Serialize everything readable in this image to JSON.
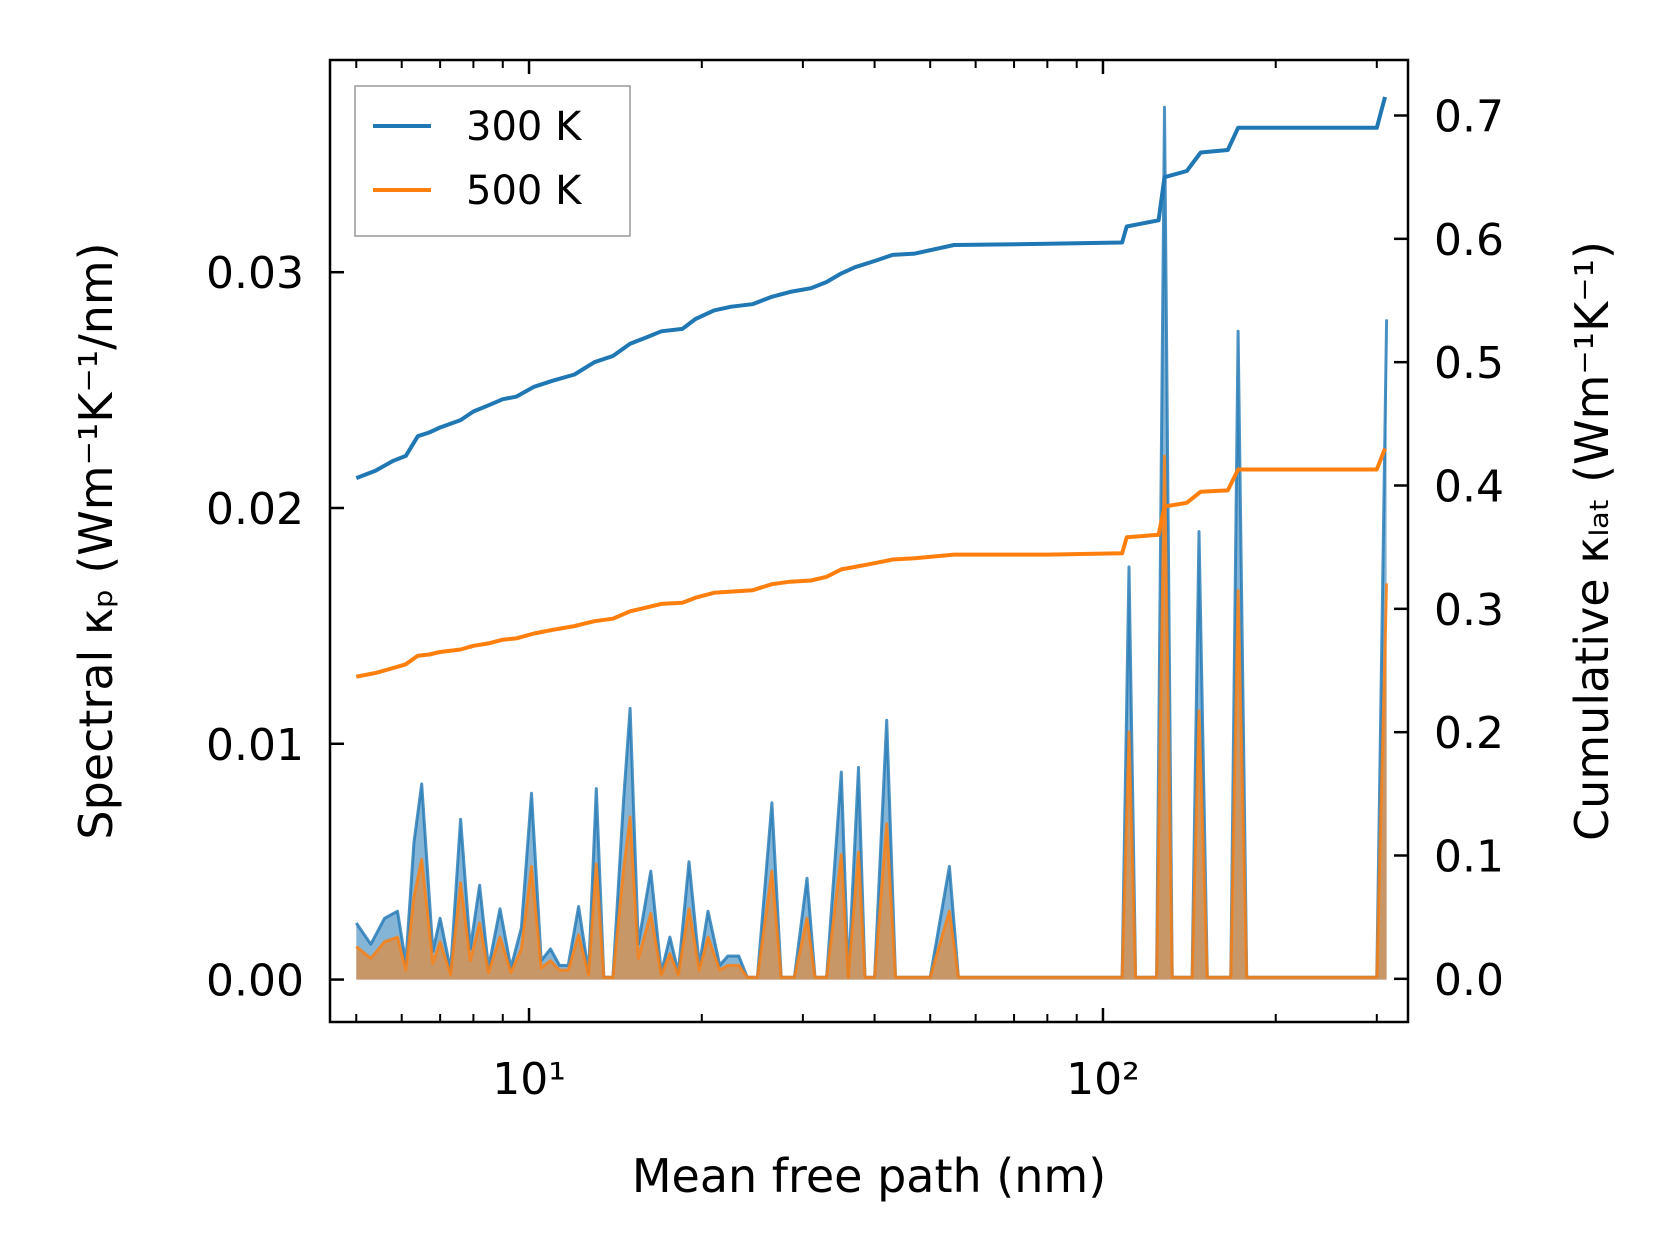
{
  "chart_data": {
    "type": "line",
    "xlabel": "Mean free path (nm)",
    "ylabel_left": "Spectral κₚ (Wm⁻¹K⁻¹/nm)",
    "ylabel_right": "Cumulative κₗₐₜ (Wm⁻¹K⁻¹)",
    "x_scale": "log",
    "xlim": [
      4.5,
      340
    ],
    "ylim_left": [
      -0.0018,
      0.039
    ],
    "ylim_right": [
      -0.035,
      0.745
    ],
    "x_ticks": [
      {
        "value": 10,
        "label": "10¹"
      },
      {
        "value": 100,
        "label": "10²"
      }
    ],
    "y_ticks_left": [
      {
        "value": 0.0,
        "label": "0.00"
      },
      {
        "value": 0.01,
        "label": "0.01"
      },
      {
        "value": 0.02,
        "label": "0.02"
      },
      {
        "value": 0.03,
        "label": "0.03"
      }
    ],
    "y_ticks_right": [
      {
        "value": 0.0,
        "label": "0.0"
      },
      {
        "value": 0.1,
        "label": "0.1"
      },
      {
        "value": 0.2,
        "label": "0.2"
      },
      {
        "value": 0.3,
        "label": "0.3"
      },
      {
        "value": 0.4,
        "label": "0.4"
      },
      {
        "value": 0.5,
        "label": "0.5"
      },
      {
        "value": 0.6,
        "label": "0.6"
      },
      {
        "value": 0.7,
        "label": "0.7"
      }
    ],
    "grid": false,
    "legend_position": "top-left",
    "series": [
      {
        "name": "300 K",
        "color": "#1f77b4",
        "fill_opacity": 0.55,
        "cumulative": [
          [
            5.0,
            0.406
          ],
          [
            5.4,
            0.412
          ],
          [
            5.8,
            0.42
          ],
          [
            6.1,
            0.424
          ],
          [
            6.4,
            0.44
          ],
          [
            6.7,
            0.443
          ],
          [
            7.0,
            0.447
          ],
          [
            7.6,
            0.453
          ],
          [
            8.0,
            0.46
          ],
          [
            8.5,
            0.465
          ],
          [
            9.0,
            0.47
          ],
          [
            9.5,
            0.472
          ],
          [
            10.2,
            0.48
          ],
          [
            11.0,
            0.485
          ],
          [
            12.0,
            0.49
          ],
          [
            13.0,
            0.5
          ],
          [
            14.0,
            0.505
          ],
          [
            15.0,
            0.515
          ],
          [
            16.0,
            0.52
          ],
          [
            17.0,
            0.525
          ],
          [
            18.5,
            0.527
          ],
          [
            19.5,
            0.535
          ],
          [
            21.0,
            0.542
          ],
          [
            22.5,
            0.545
          ],
          [
            24.5,
            0.547
          ],
          [
            26.5,
            0.553
          ],
          [
            28.5,
            0.557
          ],
          [
            31.0,
            0.56
          ],
          [
            33.0,
            0.565
          ],
          [
            35.0,
            0.572
          ],
          [
            37.0,
            0.577
          ],
          [
            40.0,
            0.582
          ],
          [
            43.0,
            0.587
          ],
          [
            47.0,
            0.588
          ],
          [
            55.0,
            0.595
          ],
          [
            80.0,
            0.596
          ],
          [
            108.0,
            0.597
          ],
          [
            110.0,
            0.61
          ],
          [
            125.0,
            0.615
          ],
          [
            128.0,
            0.65
          ],
          [
            140.0,
            0.655
          ],
          [
            148.0,
            0.67
          ],
          [
            165.0,
            0.672
          ],
          [
            172.0,
            0.69
          ],
          [
            200.0,
            0.69
          ],
          [
            300.0,
            0.69
          ],
          [
            310.0,
            0.715
          ]
        ],
        "spectral": [
          [
            5.0,
            0.0024
          ],
          [
            5.3,
            0.0015
          ],
          [
            5.6,
            0.0026
          ],
          [
            5.9,
            0.0029
          ],
          [
            6.1,
            0.0007
          ],
          [
            6.3,
            0.0058
          ],
          [
            6.5,
            0.0083
          ],
          [
            6.8,
            0.0012
          ],
          [
            7.0,
            0.0026
          ],
          [
            7.3,
            0.0004
          ],
          [
            7.6,
            0.0068
          ],
          [
            7.9,
            0.0013
          ],
          [
            8.2,
            0.004
          ],
          [
            8.5,
            0.0005
          ],
          [
            8.9,
            0.003
          ],
          [
            9.3,
            0.0005
          ],
          [
            9.7,
            0.0022
          ],
          [
            10.1,
            0.0079
          ],
          [
            10.5,
            0.0008
          ],
          [
            10.9,
            0.0013
          ],
          [
            11.3,
            0.0006
          ],
          [
            11.7,
            0.0006
          ],
          [
            12.2,
            0.0031
          ],
          [
            12.7,
            0.0003
          ],
          [
            13.1,
            0.0081
          ],
          [
            13.5,
            0.0001
          ],
          [
            14.0,
            0.0001
          ],
          [
            14.6,
            0.0075
          ],
          [
            15.0,
            0.0115
          ],
          [
            15.5,
            0.0015
          ],
          [
            16.3,
            0.0046
          ],
          [
            17.0,
            0.0003
          ],
          [
            17.6,
            0.0018
          ],
          [
            18.2,
            0.0003
          ],
          [
            19.0,
            0.005
          ],
          [
            19.8,
            0.0006
          ],
          [
            20.5,
            0.0029
          ],
          [
            21.5,
            0.0006
          ],
          [
            22.2,
            0.001
          ],
          [
            23.2,
            0.001
          ],
          [
            24.0,
            0.0001
          ],
          [
            25.0,
            0.0001
          ],
          [
            26.5,
            0.0075
          ],
          [
            27.5,
            0.0001
          ],
          [
            29.0,
            0.0001
          ],
          [
            30.5,
            0.0043
          ],
          [
            31.5,
            0.0001
          ],
          [
            33.0,
            0.0001
          ],
          [
            35.0,
            0.0088
          ],
          [
            36.0,
            0.0001
          ],
          [
            37.5,
            0.009
          ],
          [
            38.5,
            0.0001
          ],
          [
            40.0,
            0.0001
          ],
          [
            42.0,
            0.011
          ],
          [
            43.5,
            0.0001
          ],
          [
            50.0,
            0.0001
          ],
          [
            54.0,
            0.0048
          ],
          [
            56.0,
            0.0001
          ],
          [
            100.0,
            0.0001
          ],
          [
            108.0,
            0.0001
          ],
          [
            111.0,
            0.0175
          ],
          [
            114.0,
            0.0001
          ],
          [
            124.0,
            0.0001
          ],
          [
            128.0,
            0.037
          ],
          [
            132.0,
            0.0001
          ],
          [
            143.0,
            0.0001
          ],
          [
            147.0,
            0.019
          ],
          [
            152.0,
            0.0001
          ],
          [
            167.0,
            0.0001
          ],
          [
            172.0,
            0.0275
          ],
          [
            178.0,
            0.0001
          ],
          [
            300.0,
            0.0001
          ],
          [
            312.0,
            0.028
          ]
        ]
      },
      {
        "name": "500 K",
        "color": "#ff7f0e",
        "fill_opacity": 0.55,
        "cumulative": [
          [
            5.0,
            0.245
          ],
          [
            5.4,
            0.248
          ],
          [
            5.8,
            0.252
          ],
          [
            6.1,
            0.255
          ],
          [
            6.4,
            0.262
          ],
          [
            6.7,
            0.263
          ],
          [
            7.0,
            0.265
          ],
          [
            7.6,
            0.267
          ],
          [
            8.0,
            0.27
          ],
          [
            8.5,
            0.272
          ],
          [
            9.0,
            0.275
          ],
          [
            9.5,
            0.276
          ],
          [
            10.2,
            0.28
          ],
          [
            11.0,
            0.283
          ],
          [
            12.0,
            0.286
          ],
          [
            13.0,
            0.29
          ],
          [
            14.0,
            0.292
          ],
          [
            15.0,
            0.298
          ],
          [
            16.0,
            0.301
          ],
          [
            17.0,
            0.304
          ],
          [
            18.5,
            0.305
          ],
          [
            19.5,
            0.309
          ],
          [
            21.0,
            0.313
          ],
          [
            22.5,
            0.314
          ],
          [
            24.5,
            0.315
          ],
          [
            26.5,
            0.32
          ],
          [
            28.5,
            0.322
          ],
          [
            31.0,
            0.323
          ],
          [
            33.0,
            0.326
          ],
          [
            35.0,
            0.332
          ],
          [
            37.0,
            0.334
          ],
          [
            40.0,
            0.337
          ],
          [
            43.0,
            0.34
          ],
          [
            47.0,
            0.341
          ],
          [
            55.0,
            0.344
          ],
          [
            80.0,
            0.344
          ],
          [
            108.0,
            0.345
          ],
          [
            110.0,
            0.358
          ],
          [
            125.0,
            0.36
          ],
          [
            128.0,
            0.383
          ],
          [
            140.0,
            0.386
          ],
          [
            148.0,
            0.395
          ],
          [
            165.0,
            0.396
          ],
          [
            172.0,
            0.413
          ],
          [
            200.0,
            0.413
          ],
          [
            300.0,
            0.413
          ],
          [
            310.0,
            0.43
          ]
        ],
        "spectral": [
          [
            5.0,
            0.0014
          ],
          [
            5.3,
            0.0009
          ],
          [
            5.6,
            0.0016
          ],
          [
            5.9,
            0.0018
          ],
          [
            6.1,
            0.0004
          ],
          [
            6.3,
            0.0035
          ],
          [
            6.5,
            0.0051
          ],
          [
            6.8,
            0.0007
          ],
          [
            7.0,
            0.0016
          ],
          [
            7.3,
            0.0002
          ],
          [
            7.6,
            0.0041
          ],
          [
            7.9,
            0.0008
          ],
          [
            8.2,
            0.0024
          ],
          [
            8.5,
            0.0003
          ],
          [
            8.9,
            0.0018
          ],
          [
            9.3,
            0.0003
          ],
          [
            9.7,
            0.0013
          ],
          [
            10.1,
            0.0048
          ],
          [
            10.5,
            0.0005
          ],
          [
            10.9,
            0.0008
          ],
          [
            11.3,
            0.0004
          ],
          [
            11.7,
            0.0004
          ],
          [
            12.2,
            0.0019
          ],
          [
            12.7,
            0.0002
          ],
          [
            13.1,
            0.0049
          ],
          [
            13.5,
            0.0001
          ],
          [
            14.0,
            0.0001
          ],
          [
            14.6,
            0.0046
          ],
          [
            15.0,
            0.0069
          ],
          [
            15.5,
            0.0009
          ],
          [
            16.3,
            0.0028
          ],
          [
            17.0,
            0.0002
          ],
          [
            17.6,
            0.0011
          ],
          [
            18.2,
            0.0002
          ],
          [
            19.0,
            0.003
          ],
          [
            19.8,
            0.0004
          ],
          [
            20.5,
            0.0018
          ],
          [
            21.5,
            0.0004
          ],
          [
            22.2,
            0.0006
          ],
          [
            23.2,
            0.0006
          ],
          [
            24.0,
            0.0001
          ],
          [
            25.0,
            0.0001
          ],
          [
            26.5,
            0.0046
          ],
          [
            27.5,
            0.0001
          ],
          [
            29.0,
            0.0001
          ],
          [
            30.5,
            0.0026
          ],
          [
            31.5,
            0.0001
          ],
          [
            33.0,
            0.0001
          ],
          [
            35.0,
            0.0053
          ],
          [
            36.0,
            0.0001
          ],
          [
            37.5,
            0.0054
          ],
          [
            38.5,
            0.0001
          ],
          [
            40.0,
            0.0001
          ],
          [
            42.0,
            0.0066
          ],
          [
            43.5,
            0.0001
          ],
          [
            50.0,
            0.0001
          ],
          [
            54.0,
            0.0029
          ],
          [
            56.0,
            0.0001
          ],
          [
            100.0,
            0.0001
          ],
          [
            108.0,
            0.0001
          ],
          [
            111.0,
            0.0105
          ],
          [
            114.0,
            0.0001
          ],
          [
            124.0,
            0.0001
          ],
          [
            128.0,
            0.0222
          ],
          [
            132.0,
            0.0001
          ],
          [
            143.0,
            0.0001
          ],
          [
            147.0,
            0.0114
          ],
          [
            152.0,
            0.0001
          ],
          [
            167.0,
            0.0001
          ],
          [
            172.0,
            0.0165
          ],
          [
            178.0,
            0.0001
          ],
          [
            300.0,
            0.0001
          ],
          [
            312.0,
            0.0168
          ]
        ]
      }
    ]
  }
}
